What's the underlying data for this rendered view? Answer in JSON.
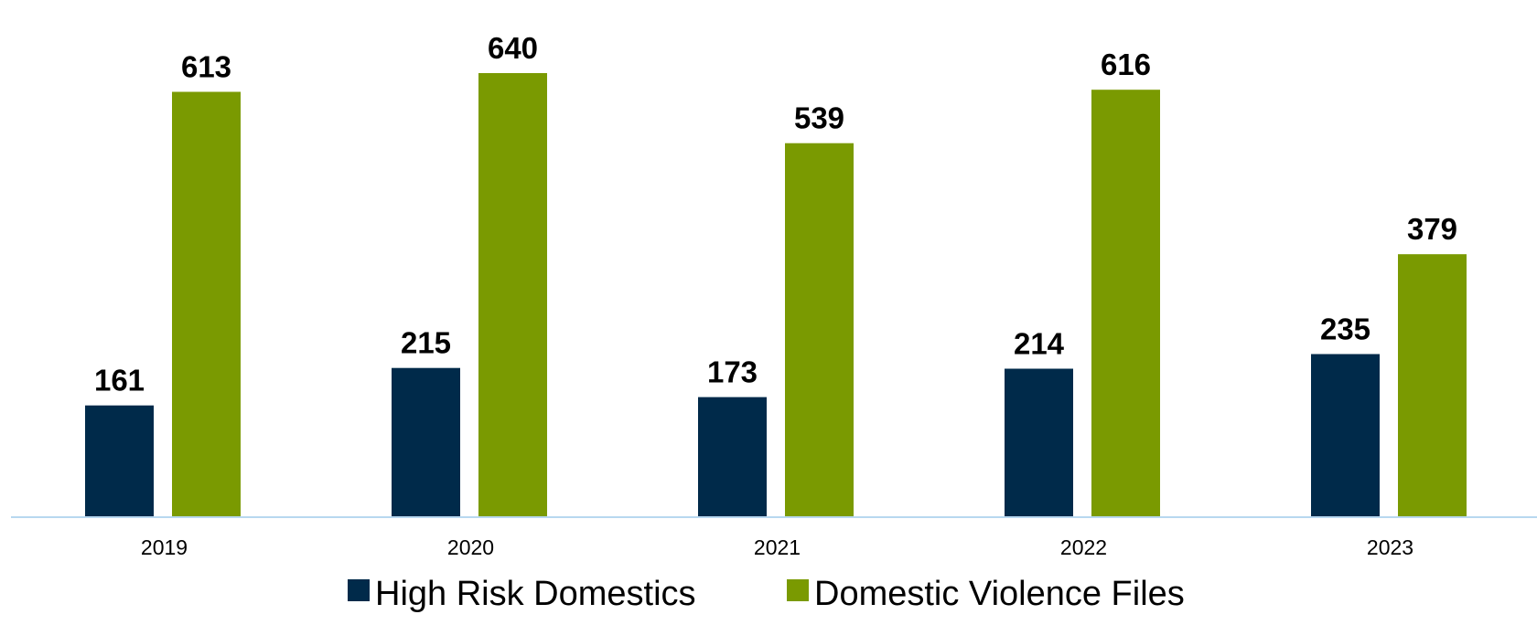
{
  "chart_data": {
    "type": "bar",
    "title": "",
    "xlabel": "",
    "ylabel": "",
    "categories": [
      "2019",
      "2020",
      "2021",
      "2022",
      "2023"
    ],
    "series": [
      {
        "name": "High Risk Domestics",
        "color": "#002a4a",
        "values": [
          161,
          215,
          173,
          214,
          235
        ]
      },
      {
        "name": "Domestic Violence Files",
        "color": "#7a9a01",
        "values": [
          613,
          640,
          539,
          616,
          379
        ]
      }
    ],
    "ylim": [
      0,
      700
    ],
    "grid": false,
    "legend": "bottom-center",
    "axis_color": "#b8d8f0"
  }
}
